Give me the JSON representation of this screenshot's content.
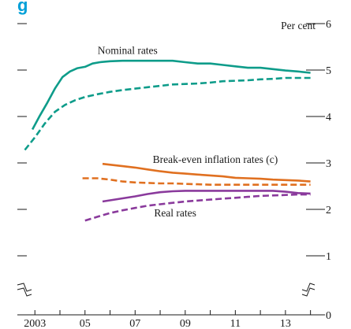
{
  "title_fragment": "g",
  "chart_data": {
    "type": "line",
    "title": "",
    "xlabel": "",
    "ylabel": "",
    "y_unit": "Per cent",
    "xlim": [
      2002.3,
      2014.2
    ],
    "ylim": [
      0,
      6
    ],
    "x_ticks": [
      2003,
      2005,
      2007,
      2009,
      2011,
      2013
    ],
    "x_tick_labels": [
      "2003",
      "05",
      "07",
      "09",
      "11",
      "13"
    ],
    "y_ticks": [
      1,
      2,
      3,
      4,
      5,
      6
    ],
    "y_tick_labels": [
      "1",
      "2",
      "3",
      "4",
      "5",
      "6"
    ],
    "y_axis_bottom_label": "0",
    "axis_break": true,
    "grid": false,
    "annotations": [
      {
        "text": "Nominal rates",
        "x": 2006.7,
        "y": 5.35
      },
      {
        "text": "Break-even inflation rates (c)",
        "x": 2010.2,
        "y": 3.0
      },
      {
        "text": "Real rates",
        "x": 2008.6,
        "y": 1.85
      }
    ],
    "series": [
      {
        "color": "#0e9c8a",
        "style": "solid",
        "x": [
          2002.9,
          2003.2,
          2003.5,
          2003.8,
          2004.1,
          2004.4,
          2004.7,
          2005.0,
          2005.3,
          2005.6,
          2006.0,
          2006.5,
          2007.0,
          2007.5,
          2008.0,
          2008.5,
          2009.0,
          2009.5,
          2010.0,
          2010.5,
          2011.0,
          2011.5,
          2012.0,
          2012.5,
          2013.0,
          2013.5,
          2014.0
        ],
        "y": [
          3.72,
          4.02,
          4.3,
          4.6,
          4.85,
          4.97,
          5.04,
          5.07,
          5.14,
          5.17,
          5.19,
          5.2,
          5.2,
          5.2,
          5.2,
          5.2,
          5.17,
          5.14,
          5.14,
          5.11,
          5.08,
          5.05,
          5.05,
          5.02,
          4.99,
          4.97,
          4.94
        ]
      },
      {
        "color": "#0e9c8a",
        "style": "dashed",
        "x": [
          2002.6,
          2003.0,
          2003.4,
          2003.8,
          2004.2,
          2004.6,
          2005.0,
          2005.5,
          2006.0,
          2006.5,
          2007.0,
          2007.5,
          2008.0,
          2008.5,
          2009.0,
          2009.5,
          2010.0,
          2010.5,
          2011.0,
          2011.5,
          2012.0,
          2012.5,
          2013.0,
          2013.5,
          2014.0
        ],
        "y": [
          3.28,
          3.55,
          3.85,
          4.1,
          4.25,
          4.35,
          4.42,
          4.48,
          4.53,
          4.57,
          4.6,
          4.63,
          4.66,
          4.69,
          4.7,
          4.71,
          4.73,
          4.76,
          4.77,
          4.78,
          4.8,
          4.81,
          4.83,
          4.83,
          4.83
        ]
      },
      {
        "color": "#e07020",
        "style": "solid",
        "x": [
          2005.7,
          2006.5,
          2007.0,
          2007.5,
          2008.0,
          2008.5,
          2009.0,
          2009.5,
          2010.0,
          2010.5,
          2011.0,
          2011.5,
          2012.0,
          2012.5,
          2013.0,
          2013.5,
          2014.0
        ],
        "y": [
          2.98,
          2.93,
          2.9,
          2.86,
          2.82,
          2.79,
          2.77,
          2.75,
          2.73,
          2.71,
          2.68,
          2.67,
          2.66,
          2.64,
          2.63,
          2.62,
          2.6
        ]
      },
      {
        "color": "#e07020",
        "style": "dashed",
        "x": [
          2004.9,
          2005.5,
          2006.0,
          2006.5,
          2007.0,
          2007.5,
          2008.0,
          2008.5,
          2009.0,
          2009.5,
          2010.0,
          2010.5,
          2011.0,
          2011.5,
          2012.0,
          2012.5,
          2013.0,
          2013.5,
          2014.0
        ],
        "y": [
          2.67,
          2.67,
          2.64,
          2.6,
          2.58,
          2.57,
          2.56,
          2.56,
          2.55,
          2.54,
          2.53,
          2.53,
          2.53,
          2.53,
          2.53,
          2.53,
          2.53,
          2.53,
          2.53
        ]
      },
      {
        "color": "#8a3a9c",
        "style": "solid",
        "x": [
          2005.7,
          2006.3,
          2007.0,
          2007.5,
          2008.0,
          2008.5,
          2009.0,
          2009.5,
          2010.0,
          2010.5,
          2011.0,
          2011.5,
          2012.0,
          2012.5,
          2013.0,
          2013.5,
          2014.0
        ],
        "y": [
          2.17,
          2.22,
          2.28,
          2.33,
          2.37,
          2.39,
          2.4,
          2.4,
          2.4,
          2.4,
          2.4,
          2.4,
          2.4,
          2.4,
          2.38,
          2.35,
          2.34
        ]
      },
      {
        "color": "#8a3a9c",
        "style": "dashed",
        "x": [
          2005.0,
          2005.5,
          2006.0,
          2006.5,
          2007.0,
          2007.5,
          2008.0,
          2008.5,
          2009.0,
          2009.5,
          2010.0,
          2010.5,
          2011.0,
          2011.5,
          2012.0,
          2012.5,
          2013.0,
          2013.5,
          2014.0
        ],
        "y": [
          1.76,
          1.84,
          1.92,
          1.98,
          2.03,
          2.08,
          2.11,
          2.14,
          2.17,
          2.19,
          2.21,
          2.23,
          2.25,
          2.27,
          2.29,
          2.3,
          2.31,
          2.32,
          2.32
        ]
      }
    ]
  }
}
